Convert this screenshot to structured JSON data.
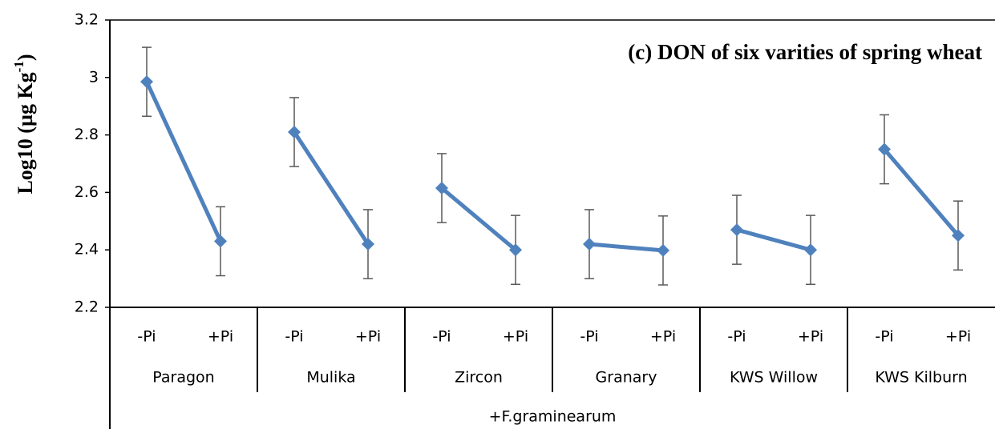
{
  "chart_data": {
    "type": "line",
    "title": "(c) DON of six varities of spring wheat",
    "y_label": {
      "text": "Log10 (µg Kg",
      "superscript": "-1",
      "close": ")"
    },
    "categories": [
      "-Pi",
      "+Pi",
      "-Pi",
      "+Pi",
      "-Pi",
      "+Pi",
      "-Pi",
      "+Pi",
      "-Pi",
      "+Pi",
      "-Pi",
      "+Pi"
    ],
    "groups": [
      "Paragon",
      "Mulika",
      "Zircon",
      "Granary",
      "KWS Willow",
      "KWS Kilburn"
    ],
    "outer_group": "+F.graminearum",
    "series": [
      {
        "color": "#4f81bd",
        "values": [
          2.985,
          2.43,
          2.81,
          2.42,
          2.615,
          2.4,
          2.42,
          2.398,
          2.47,
          2.4,
          2.75,
          2.45
        ],
        "errors": [
          0.12,
          0.12,
          0.12,
          0.12,
          0.12,
          0.12,
          0.12,
          0.12,
          0.12,
          0.12,
          0.12,
          0.12
        ]
      }
    ],
    "ylim": [
      2.2,
      3.2
    ],
    "yticks": [
      2.2,
      2.4,
      2.6,
      2.8,
      3,
      3.2
    ]
  }
}
